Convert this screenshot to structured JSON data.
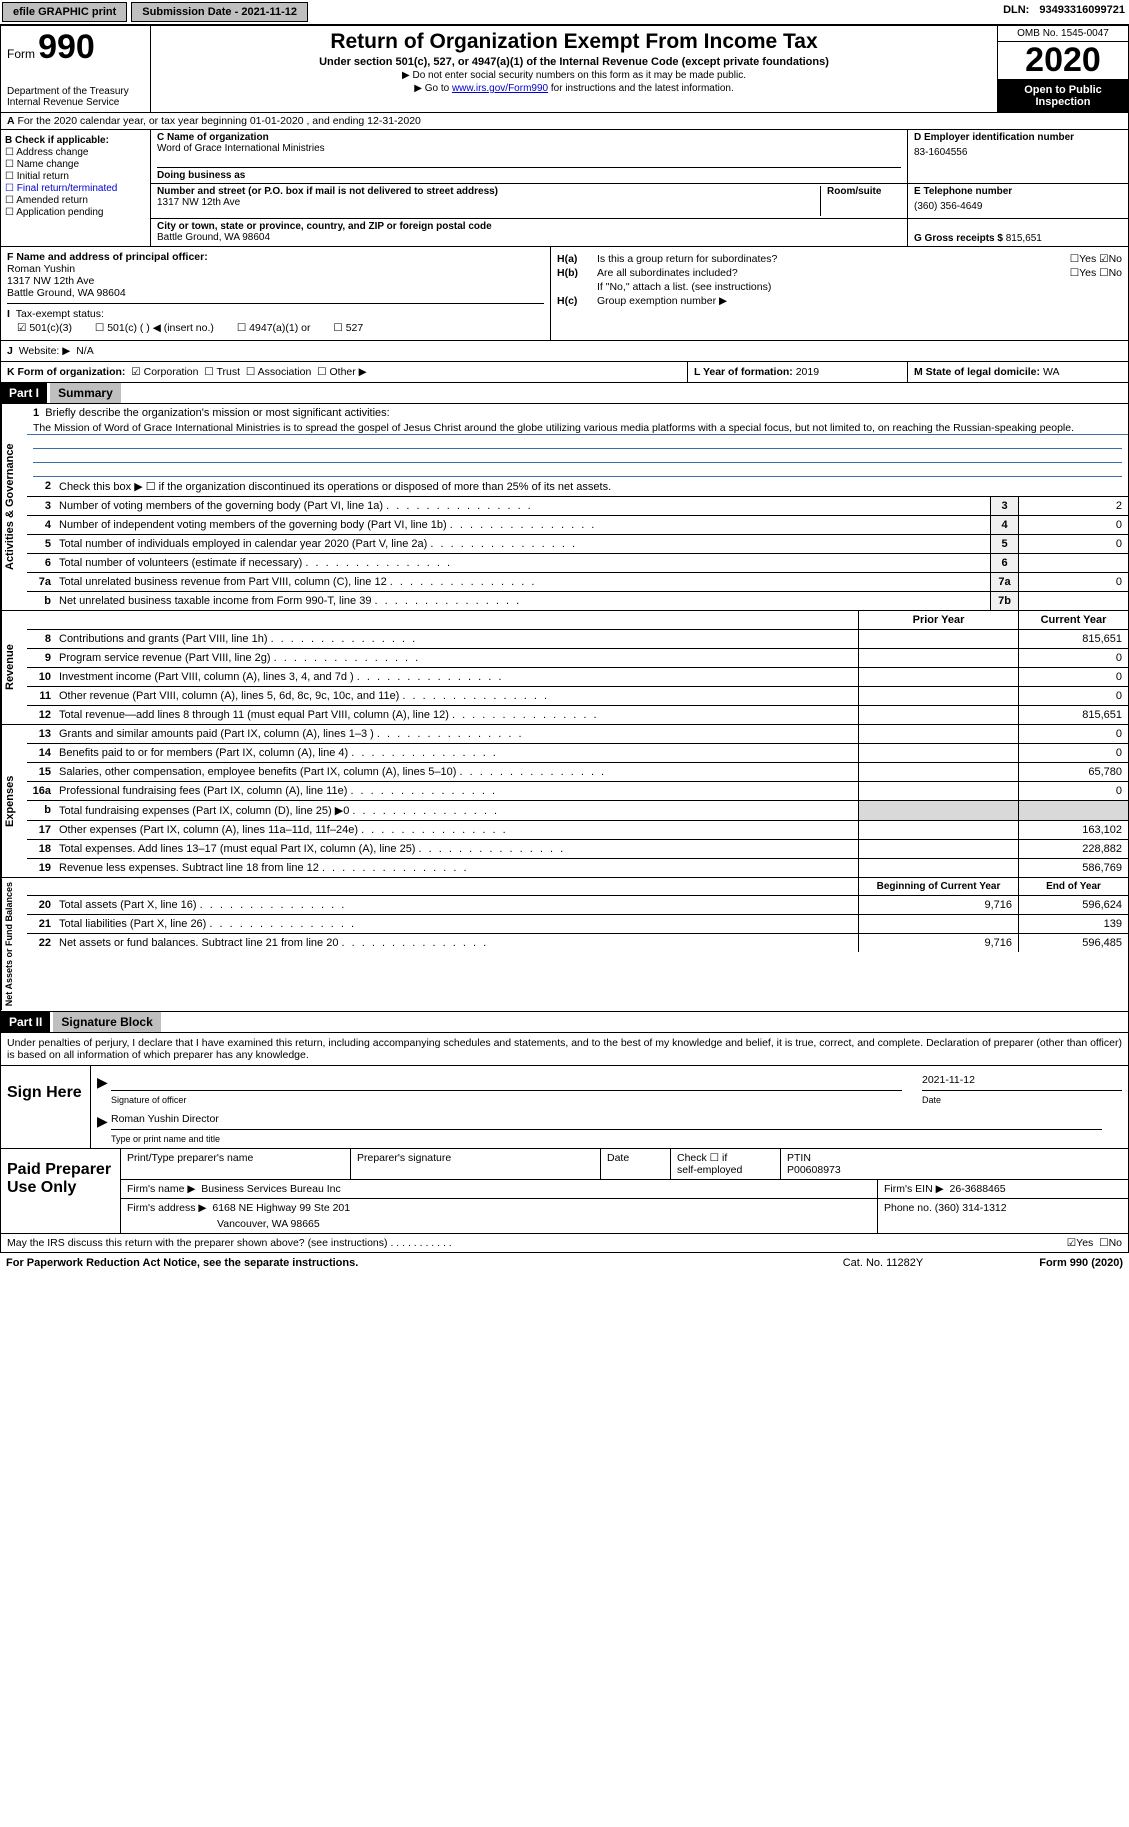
{
  "topbar": {
    "efile_label": "efile GRAPHIC print",
    "sub_date_label": "Submission Date - ",
    "sub_date": "2021-11-12",
    "dln_label": "DLN: ",
    "dln": "93493316099721"
  },
  "header": {
    "form_label": "Form",
    "form_num": "990",
    "dept1": "Department of the Treasury",
    "dept2": "Internal Revenue Service",
    "title": "Return of Organization Exempt From Income Tax",
    "subtitle": "Under section 501(c), 527, or 4947(a)(1) of the Internal Revenue Code (except private foundations)",
    "note1": "▶ Do not enter social security numbers on this form as it may be made public.",
    "note2_pre": "▶ Go to ",
    "note2_link": "www.irs.gov/Form990",
    "note2_post": " for instructions and the latest information.",
    "omb": "OMB No. 1545-0047",
    "year": "2020",
    "otp": "Open to Public Inspection"
  },
  "rowA": {
    "label": "A",
    "text": " For the 2020 calendar year, or tax year beginning 01-01-2020   , and ending 12-31-2020"
  },
  "colB": {
    "label": "B Check if applicable:",
    "items": [
      "Address change",
      "Name change",
      "Initial return",
      "Final return/terminated",
      "Amended return",
      "Application pending"
    ]
  },
  "colC": {
    "name_label": "C Name of organization",
    "name": "Word of Grace International Ministries",
    "dba_label": "Doing business as",
    "addr_label": "Number and street (or P.O. box if mail is not delivered to street address)",
    "room_label": "Room/suite",
    "addr": "1317 NW 12th Ave",
    "city_label": "City or town, state or province, country, and ZIP or foreign postal code",
    "city": "Battle Ground, WA  98604"
  },
  "colD": {
    "ein_label": "D Employer identification number",
    "ein": "83-1604556",
    "tel_label": "E Telephone number",
    "tel": "(360) 356-4649",
    "gross_label": "G Gross receipts $ ",
    "gross": "815,651"
  },
  "rowF": {
    "label": "F  Name and address of principal officer:",
    "name": "Roman Yushin",
    "addr1": "1317 NW 12th Ave",
    "addr2": "Battle Ground, WA  98604"
  },
  "rowH": {
    "ha_label": "H(a)",
    "ha_text": "Is this a group return for subordinates?",
    "hb_label": "H(b)",
    "hb_text": "Are all subordinates included?",
    "hb_note": "If \"No,\" attach a list. (see instructions)",
    "hc_label": "H(c)",
    "hc_text": "Group exemption number ▶"
  },
  "rowI": {
    "label": "I",
    "text": "Tax-exempt status:",
    "opts": [
      "501(c)(3)",
      "501(c) (  ) ◀ (insert no.)",
      "4947(a)(1) or",
      "527"
    ]
  },
  "rowJ": {
    "label": "J",
    "text": "Website: ▶",
    "val": "N/A"
  },
  "rowK": {
    "label": "K Form of organization:",
    "opts": [
      "Corporation",
      "Trust",
      "Association",
      "Other ▶"
    ],
    "year_label": "L Year of formation: ",
    "year": "2019",
    "state_label": "M State of legal domicile: ",
    "state": "WA"
  },
  "partI": {
    "hdr": "Part I",
    "title": "Summary"
  },
  "mission": {
    "num": "1",
    "label": "Briefly describe the organization's mission or most significant activities:",
    "text": "The Mission of Word of Grace International Ministries is to spread the gospel of Jesus Christ around the globe utilizing various media platforms with a special focus, but not limited to, on reaching the Russian-speaking people."
  },
  "gov_lines": [
    {
      "n": "2",
      "t": "Check this box ▶ ☐  if the organization discontinued its operations or disposed of more than 25% of its net assets.",
      "box": "",
      "v": ""
    },
    {
      "n": "3",
      "t": "Number of voting members of the governing body (Part VI, line 1a)",
      "box": "3",
      "v": "2"
    },
    {
      "n": "4",
      "t": "Number of independent voting members of the governing body (Part VI, line 1b)",
      "box": "4",
      "v": "0"
    },
    {
      "n": "5",
      "t": "Total number of individuals employed in calendar year 2020 (Part V, line 2a)",
      "box": "5",
      "v": "0"
    },
    {
      "n": "6",
      "t": "Total number of volunteers (estimate if necessary)",
      "box": "6",
      "v": ""
    },
    {
      "n": "7a",
      "t": "Total unrelated business revenue from Part VIII, column (C), line 12",
      "box": "7a",
      "v": "0"
    },
    {
      "n": "b",
      "t": "Net unrelated business taxable income from Form 990-T, line 39",
      "box": "7b",
      "v": ""
    }
  ],
  "col_hdrs": {
    "prior": "Prior Year",
    "current": "Current Year"
  },
  "rev_lines": [
    {
      "n": "8",
      "t": "Contributions and grants (Part VIII, line 1h)",
      "p": "",
      "c": "815,651"
    },
    {
      "n": "9",
      "t": "Program service revenue (Part VIII, line 2g)",
      "p": "",
      "c": "0"
    },
    {
      "n": "10",
      "t": "Investment income (Part VIII, column (A), lines 3, 4, and 7d )",
      "p": "",
      "c": "0"
    },
    {
      "n": "11",
      "t": "Other revenue (Part VIII, column (A), lines 5, 6d, 8c, 9c, 10c, and 11e)",
      "p": "",
      "c": "0"
    },
    {
      "n": "12",
      "t": "Total revenue—add lines 8 through 11 (must equal Part VIII, column (A), line 12)",
      "p": "",
      "c": "815,651"
    }
  ],
  "exp_lines": [
    {
      "n": "13",
      "t": "Grants and similar amounts paid (Part IX, column (A), lines 1–3 )",
      "p": "",
      "c": "0"
    },
    {
      "n": "14",
      "t": "Benefits paid to or for members (Part IX, column (A), line 4)",
      "p": "",
      "c": "0"
    },
    {
      "n": "15",
      "t": "Salaries, other compensation, employee benefits (Part IX, column (A), lines 5–10)",
      "p": "",
      "c": "65,780"
    },
    {
      "n": "16a",
      "t": "Professional fundraising fees (Part IX, column (A), line 11e)",
      "p": "",
      "c": "0"
    },
    {
      "n": "b",
      "t": "Total fundraising expenses (Part IX, column (D), line 25) ▶0",
      "p": "shade",
      "c": "shade"
    },
    {
      "n": "17",
      "t": "Other expenses (Part IX, column (A), lines 11a–11d, 11f–24e)",
      "p": "",
      "c": "163,102"
    },
    {
      "n": "18",
      "t": "Total expenses. Add lines 13–17 (must equal Part IX, column (A), line 25)",
      "p": "",
      "c": "228,882"
    },
    {
      "n": "19",
      "t": "Revenue less expenses. Subtract line 18 from line 12",
      "p": "",
      "c": "586,769"
    }
  ],
  "na_hdrs": {
    "begin": "Beginning of Current Year",
    "end": "End of Year"
  },
  "na_lines": [
    {
      "n": "20",
      "t": "Total assets (Part X, line 16)",
      "p": "9,716",
      "c": "596,624"
    },
    {
      "n": "21",
      "t": "Total liabilities (Part X, line 26)",
      "p": "",
      "c": "139"
    },
    {
      "n": "22",
      "t": "Net assets or fund balances. Subtract line 21 from line 20",
      "p": "9,716",
      "c": "596,485"
    }
  ],
  "vtabs": {
    "gov": "Activities & Governance",
    "rev": "Revenue",
    "exp": "Expenses",
    "na": "Net Assets or Fund Balances"
  },
  "partII": {
    "hdr": "Part II",
    "title": "Signature Block"
  },
  "perjury": "Under penalties of perjury, I declare that I have examined this return, including accompanying schedules and statements, and to the best of my knowledge and belief, it is true, correct, and complete. Declaration of preparer (other than officer) is based on all information of which preparer has any knowledge.",
  "sign": {
    "here": "Sign Here",
    "sig_label": "Signature of officer",
    "date_label": "Date",
    "date": "2021-11-12",
    "name": "Roman Yushin  Director",
    "name_label": "Type or print name and title"
  },
  "prep": {
    "left": "Paid Preparer Use Only",
    "h1": "Print/Type preparer's name",
    "h2": "Preparer's signature",
    "h3": "Date",
    "h4_a": "Check ☐ if",
    "h4_b": "self-employed",
    "h5": "PTIN",
    "ptin": "P00608973",
    "firm_name_l": "Firm's name  ▶",
    "firm_name": "Business Services Bureau Inc",
    "firm_ein_l": "Firm's EIN ▶",
    "firm_ein": "26-3688465",
    "firm_addr_l": "Firm's address ▶",
    "firm_addr1": "6168 NE Highway 99 Ste 201",
    "firm_addr2": "Vancouver, WA  98665",
    "phone_l": "Phone no. ",
    "phone": "(360) 314-1312"
  },
  "discuss": {
    "q": "May the IRS discuss this return with the preparer shown above? (see instructions)",
    "yes": "Yes",
    "no": "No"
  },
  "footer": {
    "pra": "For Paperwork Reduction Act Notice, see the separate instructions.",
    "cat": "Cat. No. 11282Y",
    "form": "Form 990 (2020)"
  }
}
